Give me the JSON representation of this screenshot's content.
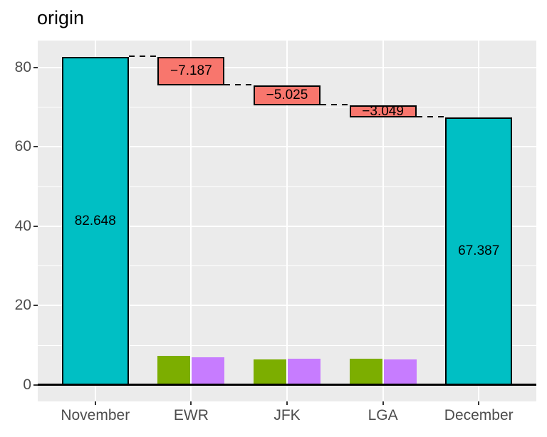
{
  "chart_data": {
    "type": "bar",
    "subtype": "waterfall",
    "title": "origin",
    "categories": [
      "November",
      "EWR",
      "JFK",
      "LGA",
      "December"
    ],
    "y_axis": {
      "ticks": [
        0,
        20,
        40,
        60,
        80
      ],
      "minor_ticks": [
        10,
        30,
        50,
        70
      ],
      "range": [
        -4.13,
        86.8
      ]
    },
    "waterfall_bars": [
      {
        "category": "November",
        "start": 0,
        "end": 82.648,
        "label": "82.648",
        "role": "total"
      },
      {
        "category": "EWR",
        "start": 82.648,
        "end": 75.461,
        "label": "−7.187",
        "role": "decrease"
      },
      {
        "category": "JFK",
        "start": 75.461,
        "end": 70.436,
        "label": "−5.025",
        "role": "decrease"
      },
      {
        "category": "LGA",
        "start": 70.436,
        "end": 67.387,
        "label": "−3.049",
        "role": "decrease"
      },
      {
        "category": "December",
        "start": 0,
        "end": 67.387,
        "label": "67.387",
        "role": "total"
      }
    ],
    "connectors": [
      {
        "from": "November",
        "to": "EWR",
        "level": 82.648
      },
      {
        "from": "EWR",
        "to": "JFK",
        "level": 75.461
      },
      {
        "from": "JFK",
        "to": "LGA",
        "level": 70.436
      },
      {
        "from": "LGA",
        "to": "December",
        "level": 67.387
      }
    ],
    "grouped_bars": [
      {
        "category": "EWR",
        "green": 7.4,
        "purple": 7.0
      },
      {
        "category": "JFK",
        "green": 6.5,
        "purple": 6.7
      },
      {
        "category": "LGA",
        "green": 6.7,
        "purple": 6.5
      }
    ],
    "legend": "none",
    "grid": true,
    "colors": {
      "total": "#00BFC4",
      "decrease": "#F8766D",
      "green": "#7CAE00",
      "purple": "#C77CFF",
      "panel_background": "#EBEBEB",
      "grid_major": "#FFFFFF",
      "grid_minor": "#FFFFFF",
      "axis_text": "#4D4D4D",
      "tick_mark": "#333333",
      "bar_border": "#000000",
      "zero_line": "#000000",
      "label_text": "#000000",
      "title_text": "#000000"
    }
  }
}
